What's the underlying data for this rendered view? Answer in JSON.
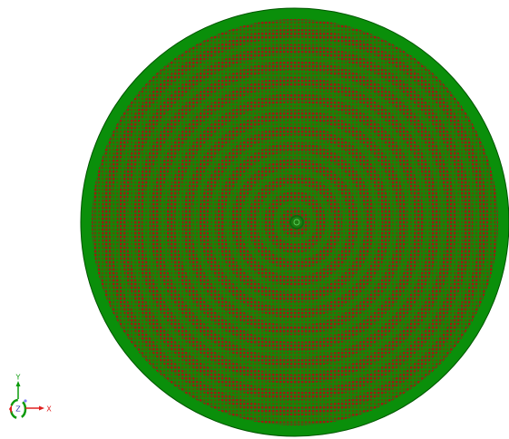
{
  "axes": {
    "y": "Y",
    "z": "Z",
    "x": "X"
  }
}
